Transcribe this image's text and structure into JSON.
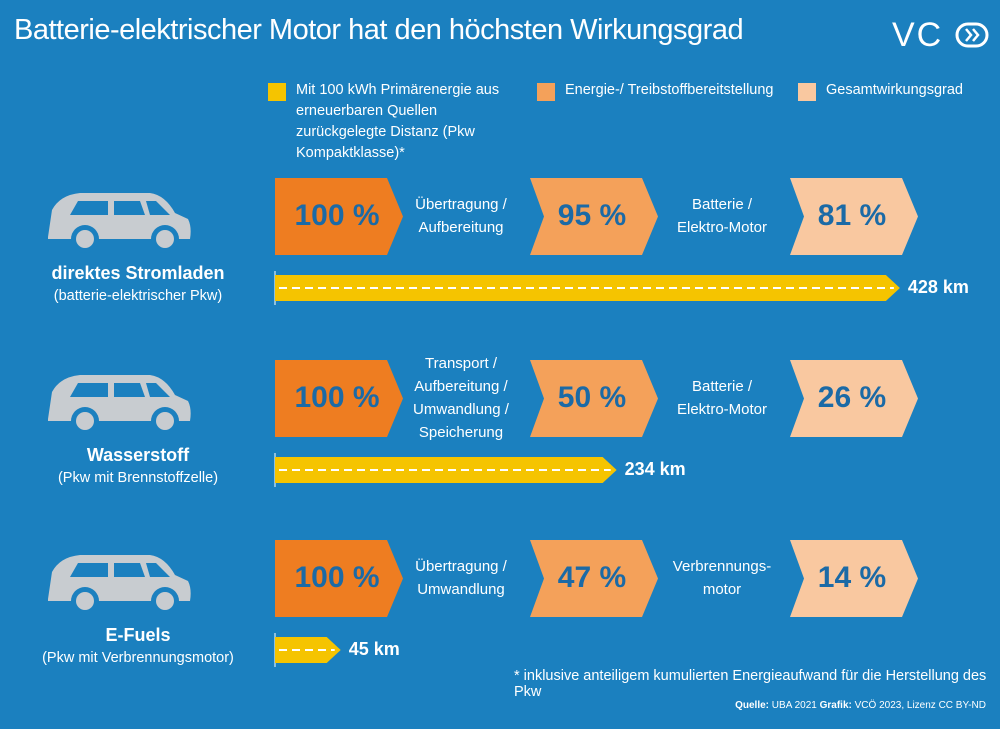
{
  "header": {
    "title": "Batterie-elektrischer Motor hat den höchsten Wirkungsgrad",
    "logo": "VC"
  },
  "legend": [
    "Mit 100 kWh Primärenergie aus erneuerbaren Quellen zurückgelegte Distanz (Pkw Kompaktklasse)*",
    "Energie-/ Treibstoffbereitstellung",
    "Gesamtwirkungsgrad"
  ],
  "rows": [
    {
      "name": "direktes Stromladen",
      "subtitle": "(batterie-elektrischer Pkw)",
      "steps": [
        "100 %",
        "95 %",
        "81 %"
      ],
      "transitions": [
        "Übertragung / Aufbereitung",
        "Batterie / Elektro-Motor"
      ],
      "distance": {
        "value": 428,
        "label": "428 km"
      }
    },
    {
      "name": "Wasserstoff",
      "subtitle": "(Pkw mit Brennstoffzelle)",
      "steps": [
        "100 %",
        "50 %",
        "26 %"
      ],
      "transitions": [
        "Transport / Aufbereitung / Umwandlung / Speicherung",
        "Batterie / Elektro-Motor"
      ],
      "distance": {
        "value": 234,
        "label": "234 km"
      }
    },
    {
      "name": "E-Fuels",
      "subtitle": "(Pkw mit Verbrennungsmotor)",
      "steps": [
        "100 %",
        "47 %",
        "14 %"
      ],
      "transitions": [
        "Übertragung / Umwandlung",
        "Verbrennungs-motor"
      ],
      "distance": {
        "value": 45,
        "label": "45 km"
      }
    }
  ],
  "footnote": "* inklusive anteiligem kumulierten Energieaufwand für die Herstellung des Pkw",
  "source": {
    "label1": "Quelle:",
    "text1": "UBA 2021",
    "label2": "Grafik:",
    "text2": "VCÖ 2023, Lizenz CC BY-ND"
  }
}
